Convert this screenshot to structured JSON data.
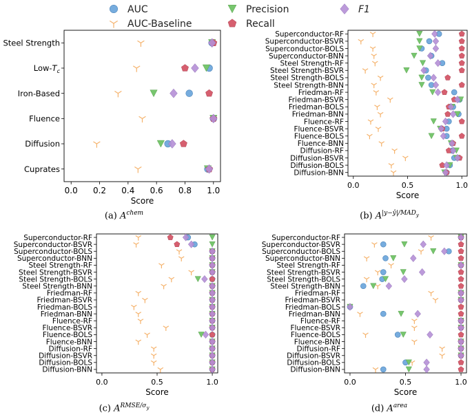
{
  "legend": {
    "items": [
      {
        "name": "AUC",
        "marker": "circle"
      },
      {
        "name": "AUC-Baseline",
        "marker": "tri_down_thin"
      },
      {
        "name": "Precision",
        "marker": "triangle"
      },
      {
        "name": "Recall",
        "marker": "pentagon"
      },
      {
        "name": "F1",
        "marker": "diamond"
      }
    ]
  },
  "colors": {
    "auc": "#6fa8dc",
    "baseline": "#f5b26b",
    "precision": "#77c66e",
    "recall": "#d65f6f",
    "f1": "#b58fd6"
  },
  "captions": {
    "a_prefix": "(a)",
    "a_base": "A",
    "a_sup": "chem",
    "b_prefix": "(b)",
    "b_base": "A",
    "b_sup": "|y−ŷ|/MAD",
    "b_subsub": "y",
    "c_prefix": "(c)",
    "c_base": "A",
    "c_sup": "RMSE/σ",
    "c_subsub": "y",
    "d_prefix": "(d)",
    "d_base": "A",
    "d_sup": "area"
  },
  "chart_data": [
    {
      "id": "a",
      "type": "scatter",
      "xlabel": "Score",
      "xlim": [
        0.0,
        1.0
      ],
      "xticks": [
        "0.0",
        "0.2",
        "0.4",
        "0.6",
        "0.8",
        "1.0"
      ],
      "categories": [
        "Steel Strength",
        "Low-T_c",
        "Iron-Based",
        "Fluence",
        "Diffusion",
        "Cuprates"
      ],
      "category_labels": [
        "Steel Strength",
        "Low-",
        "Iron-Based",
        "Fluence",
        "Diffusion",
        "Cuprates"
      ],
      "category_label_tc": "T",
      "category_label_tc_sub": "c",
      "series": [
        {
          "name": "AUC",
          "values": [
            0.99,
            0.97,
            0.83,
            1.0,
            0.68,
            0.96
          ]
        },
        {
          "name": "AUC-Baseline",
          "values": [
            0.49,
            0.46,
            0.33,
            0.5,
            0.18,
            0.47
          ]
        },
        {
          "name": "Precision",
          "values": [
            0.99,
            0.95,
            0.58,
            1.0,
            0.63,
            0.96
          ]
        },
        {
          "name": "Recall",
          "values": [
            1.0,
            0.8,
            0.97,
            1.0,
            0.79,
            0.97
          ]
        },
        {
          "name": "F1",
          "values": [
            0.99,
            0.87,
            0.72,
            1.0,
            0.71,
            0.97
          ]
        }
      ]
    },
    {
      "id": "b",
      "type": "scatter",
      "xlabel": "Score",
      "xlim": [
        0.0,
        1.0
      ],
      "xticks": [
        "0.0",
        "0.5",
        "1.0"
      ],
      "categories": [
        "Superconductor-RF",
        "Superconductor-BSVR",
        "Superconductor-BOLS",
        "Superconductor-BNN",
        "Steel Strength-RF",
        "Steel Strength-BSVR",
        "Steel Strength-BOLS",
        "Steel Strength-BNN",
        "Friedman-RF",
        "Friedman-BSVR",
        "Friedman-BOLS",
        "Friedman-BNN",
        "Fluence-RF",
        "Fluence-BSVR",
        "Fluence-BOLS",
        "Fluence-BNN",
        "Diffusion-RF",
        "Diffusion-BSVR",
        "Diffusion-BOLS",
        "Diffusion-BNN"
      ],
      "series": [
        {
          "name": "AUC",
          "values": [
            0.79,
            0.7,
            0.63,
            0.72,
            0.82,
            0.67,
            0.69,
            0.72,
            0.93,
            0.98,
            0.92,
            0.97,
            0.88,
            0.86,
            0.86,
            0.91,
            0.91,
            0.93,
            0.89,
            0.86
          ]
        },
        {
          "name": "AUC-Baseline",
          "values": [
            0.18,
            0.07,
            0.18,
            0.19,
            0.2,
            0.11,
            0.25,
            0.19,
            0.21,
            0.34,
            0.22,
            0.25,
            0.16,
            0.23,
            0.15,
            0.26,
            0.38,
            0.48,
            0.35,
            0.37
          ]
        },
        {
          "name": "Precision",
          "values": [
            0.61,
            0.61,
            0.61,
            0.56,
            0.64,
            0.49,
            0.63,
            0.63,
            0.73,
            0.99,
            0.91,
            0.96,
            0.74,
            0.8,
            0.72,
            0.9,
            0.95,
            0.95,
            0.89,
            0.84
          ]
        },
        {
          "name": "Recall",
          "values": [
            1.0,
            1.0,
            1.0,
            1.0,
            1.0,
            1.0,
            0.87,
            1.0,
            0.84,
            0.93,
            0.88,
            0.87,
            1.0,
            0.82,
            1.0,
            0.92,
            0.88,
            0.98,
            0.82,
            0.86
          ]
        },
        {
          "name": "F1",
          "values": [
            0.75,
            0.76,
            0.76,
            0.71,
            0.78,
            0.65,
            0.74,
            0.76,
            0.78,
            0.96,
            0.9,
            0.92,
            0.85,
            0.81,
            0.83,
            0.91,
            0.92,
            0.96,
            0.86,
            0.85
          ]
        }
      ]
    },
    {
      "id": "c",
      "type": "scatter",
      "xlabel": "Score",
      "xlim": [
        0.0,
        1.0
      ],
      "xticks": [
        "0.0",
        "0.5",
        "1.0"
      ],
      "categories": [
        "Superconductor-RF",
        "Superconductor-BSVR",
        "Superconductor-BOLS",
        "Superconductor-BNN",
        "Steel Strength-RF",
        "Steel Strength-BSVR",
        "Steel Strength-BOLS",
        "Steel Strength-BNN",
        "Friedman-RF",
        "Friedman-BSVR",
        "Friedman-BOLS",
        "Friedman-BNN",
        "Fluence-RF",
        "Fluence-BSVR",
        "Fluence-BOLS",
        "Fluence-BNN",
        "Diffusion-RF",
        "Diffusion-BSVR",
        "Diffusion-BOLS",
        "Diffusion-BNN"
      ],
      "series": [
        {
          "name": "AUC",
          "values": [
            0.78,
            0.84,
            1.0,
            1.0,
            1.0,
            1.0,
            1.0,
            1.0,
            1.0,
            1.0,
            1.0,
            1.0,
            1.0,
            1.0,
            1.0,
            1.0,
            1.0,
            1.0,
            1.0,
            1.0
          ]
        },
        {
          "name": "AUC-Baseline",
          "values": [
            0.33,
            0.31,
            0.7,
            0.72,
            0.54,
            0.81,
            0.63,
            0.56,
            0.33,
            0.39,
            0.29,
            0.33,
            0.35,
            0.58,
            0.41,
            0.33,
            0.47,
            0.47,
            0.47,
            0.53
          ]
        },
        {
          "name": "Precision",
          "values": [
            1.0,
            1.0,
            1.0,
            1.0,
            1.0,
            1.0,
            0.87,
            1.0,
            1.0,
            1.0,
            1.0,
            1.0,
            1.0,
            1.0,
            0.9,
            1.0,
            1.0,
            1.0,
            1.0,
            1.0
          ]
        },
        {
          "name": "Recall",
          "values": [
            0.62,
            0.68,
            1.0,
            1.0,
            1.0,
            1.0,
            1.0,
            1.0,
            1.0,
            1.0,
            1.0,
            1.0,
            1.0,
            1.0,
            1.0,
            1.0,
            1.0,
            1.0,
            1.0,
            1.0
          ]
        },
        {
          "name": "F1",
          "values": [
            0.76,
            0.81,
            1.0,
            1.0,
            1.0,
            1.0,
            0.93,
            1.0,
            1.0,
            1.0,
            1.0,
            1.0,
            1.0,
            1.0,
            0.94,
            1.0,
            1.0,
            1.0,
            1.0,
            1.0
          ]
        }
      ]
    },
    {
      "id": "d",
      "type": "scatter",
      "xlabel": "Score",
      "xlim": [
        0.0,
        1.0
      ],
      "xticks": [
        "0.0",
        "0.5",
        "1.0"
      ],
      "categories": [
        "Superconductor-RF",
        "Superconductor-BSVR",
        "Superconductor-BOLS",
        "Superconductor-BNN",
        "Steel Strength-RF",
        "Steel Strength-BSVR",
        "Steel Strength-BOLS",
        "Steel Strength-BNN",
        "Friedman-RF",
        "Friedman-BSVR",
        "Friedman-BOLS",
        "Friedman-BNN",
        "Fluence-RF",
        "Fluence-BSVR",
        "Fluence-BOLS",
        "Fluence-BNN",
        "Diffusion-RF",
        "Diffusion-BSVR",
        "Diffusion-BOLS",
        "Diffusion-BNN"
      ],
      "series": [
        {
          "name": "AUC",
          "values": [
            1.0,
            0.3,
            0.89,
            0.32,
            1.0,
            0.3,
            0.29,
            0.12,
            1.0,
            1.0,
            0.0,
            0.3,
            1.0,
            1.0,
            0.43,
            1.0,
            1.0,
            1.0,
            0.5,
            0.3
          ]
        },
        {
          "name": "AUC-Baseline",
          "values": [
            0.73,
            0.22,
            0.64,
            0.15,
            0.37,
            0.25,
            0.15,
            0.25,
            0.73,
            0.77,
            1.0,
            0.09,
            0.58,
            0.58,
            0.14,
            0.58,
            0.83,
            0.83,
            0.56,
            0.23
          ]
        },
        {
          "name": "Precision",
          "values": [
            1.0,
            0.49,
            0.75,
            0.39,
            1.0,
            0.48,
            0.32,
            0.21,
            1.0,
            1.0,
            0.0,
            0.46,
            1.0,
            1.0,
            0.48,
            1.0,
            1.0,
            1.0,
            0.53,
            0.53
          ]
        },
        {
          "name": "Recall",
          "values": [
            1.0,
            1.0,
            1.0,
            1.0,
            1.0,
            1.0,
            1.0,
            1.0,
            1.0,
            1.0,
            1.0,
            1.0,
            1.0,
            1.0,
            1.0,
            1.0,
            1.0,
            1.0,
            1.0,
            1.0
          ]
        },
        {
          "name": "F1",
          "values": [
            1.0,
            0.66,
            0.85,
            0.57,
            1.0,
            0.65,
            0.49,
            0.35,
            1.0,
            1.0,
            0.0,
            0.61,
            1.0,
            1.0,
            0.72,
            1.0,
            1.0,
            1.0,
            0.69,
            0.69
          ]
        }
      ]
    }
  ]
}
